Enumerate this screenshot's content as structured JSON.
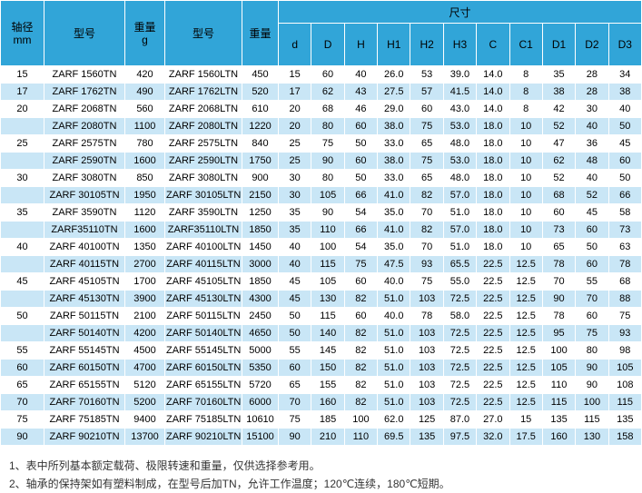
{
  "colors": {
    "header_bg": "#31a5d8",
    "stripe_bg": "#c9e6f6",
    "body_bg": "#ffffff",
    "text": "#000000"
  },
  "table": {
    "header": {
      "axis_line1": "轴径",
      "axis_line2": "mm",
      "model_tn": "型号",
      "weight_line1": "重量",
      "weight_line2": "g",
      "model_ltn": "型号",
      "weight2": "重量",
      "dims_group": "尺寸",
      "dims": [
        "d",
        "D",
        "H",
        "H1",
        "H2",
        "H3",
        "C",
        "C1",
        "D1",
        "D2",
        "D3"
      ]
    },
    "rows": [
      [
        "15",
        "ZARF 1560TN",
        "420",
        "ZARF 1560LTN",
        "450",
        "15",
        "60",
        "40",
        "26.0",
        "53",
        "39.0",
        "14.0",
        "8",
        "35",
        "28",
        "34"
      ],
      [
        "17",
        "ZARF 1762TN",
        "490",
        "ZARF 1762LTN",
        "520",
        "17",
        "62",
        "43",
        "27.5",
        "57",
        "41.5",
        "14.0",
        "8",
        "38",
        "28",
        "38"
      ],
      [
        "20",
        "ZARF 2068TN",
        "560",
        "ZARF 2068LTN",
        "610",
        "20",
        "68",
        "46",
        "29.0",
        "60",
        "43.0",
        "14.0",
        "8",
        "42",
        "30",
        "40"
      ],
      [
        "",
        "ZARF 2080TN",
        "1100",
        "ZARF 2080LTN",
        "1220",
        "20",
        "80",
        "60",
        "38.0",
        "75",
        "53.0",
        "18.0",
        "10",
        "52",
        "40",
        "50"
      ],
      [
        "25",
        "ZARF 2575TN",
        "780",
        "ZARF 2575LTN",
        "840",
        "25",
        "75",
        "50",
        "33.0",
        "65",
        "48.0",
        "18.0",
        "10",
        "47",
        "36",
        "45"
      ],
      [
        "",
        "ZARF 2590TN",
        "1600",
        "ZARF 2590LTN",
        "1750",
        "25",
        "90",
        "60",
        "38.0",
        "75",
        "53.0",
        "18.0",
        "10",
        "62",
        "48",
        "60"
      ],
      [
        "30",
        "ZARF 3080TN",
        "850",
        "ZARF 3080LTN",
        "900",
        "30",
        "80",
        "50",
        "33.0",
        "65",
        "48.0",
        "18.0",
        "10",
        "52",
        "40",
        "50"
      ],
      [
        "",
        "ZARF 30105TN",
        "1950",
        "ZARF 30105LTN",
        "2150",
        "30",
        "105",
        "66",
        "41.0",
        "82",
        "57.0",
        "18.0",
        "10",
        "68",
        "52",
        "66"
      ],
      [
        "35",
        "ZARF 3590TN",
        "1120",
        "ZARF 3590LTN",
        "1250",
        "35",
        "90",
        "54",
        "35.0",
        "70",
        "51.0",
        "18.0",
        "10",
        "60",
        "45",
        "58"
      ],
      [
        "",
        "ZARF35110TN",
        "1600",
        "ZARF35110LTN",
        "1850",
        "35",
        "110",
        "66",
        "41.0",
        "82",
        "57.0",
        "18.0",
        "10",
        "73",
        "60",
        "73"
      ],
      [
        "40",
        "ZARF 40100TN",
        "1350",
        "ZARF 40100LTN",
        "1450",
        "40",
        "100",
        "54",
        "35.0",
        "70",
        "51.0",
        "18.0",
        "10",
        "65",
        "50",
        "63"
      ],
      [
        "",
        "ZARF 40115TN",
        "2700",
        "ZARF 40115LTN",
        "3000",
        "40",
        "115",
        "75",
        "47.5",
        "93",
        "65.5",
        "22.5",
        "12.5",
        "78",
        "60",
        "78"
      ],
      [
        "45",
        "ZARF 45105TN",
        "1700",
        "ZARF 45105LTN",
        "1850",
        "45",
        "105",
        "60",
        "40.0",
        "75",
        "55.0",
        "22.5",
        "12.5",
        "70",
        "55",
        "68"
      ],
      [
        "",
        "ZARF 45130TN",
        "3900",
        "ZARF 45130LTN",
        "4300",
        "45",
        "130",
        "82",
        "51.0",
        "103",
        "72.5",
        "22.5",
        "12.5",
        "90",
        "70",
        "88"
      ],
      [
        "50",
        "ZARF 50115TN",
        "2100",
        "ZARF 50115LTN",
        "2450",
        "50",
        "115",
        "60",
        "40.0",
        "78",
        "58.0",
        "22.5",
        "12.5",
        "78",
        "60",
        "75"
      ],
      [
        "",
        "ZARF 50140TN",
        "4200",
        "ZARF 50140LTN",
        "4650",
        "50",
        "140",
        "82",
        "51.0",
        "103",
        "72.5",
        "22.5",
        "12.5",
        "95",
        "75",
        "93"
      ],
      [
        "55",
        "ZARF 55145TN",
        "4500",
        "ZARF 55145LTN",
        "5000",
        "55",
        "145",
        "82",
        "51.0",
        "103",
        "72.5",
        "22.5",
        "12.5",
        "100",
        "80",
        "98"
      ],
      [
        "60",
        "ZARF 60150TN",
        "4700",
        "ZARF 60150LTN",
        "5350",
        "60",
        "150",
        "82",
        "51.0",
        "103",
        "72.5",
        "22.5",
        "12.5",
        "105",
        "90",
        "105"
      ],
      [
        "65",
        "ZARF 65155TN",
        "5120",
        "ZARF 65155LTN",
        "5720",
        "65",
        "155",
        "82",
        "51.0",
        "103",
        "72.5",
        "22.5",
        "12.5",
        "110",
        "90",
        "108"
      ],
      [
        "70",
        "ZARF 70160TN",
        "5200",
        "ZARF 70160LTN",
        "6000",
        "70",
        "160",
        "82",
        "51.0",
        "103",
        "72.5",
        "22.5",
        "12.5",
        "115",
        "100",
        "115"
      ],
      [
        "75",
        "ZARF 75185TN",
        "9400",
        "ZARF 75185LTN",
        "10610",
        "75",
        "185",
        "100",
        "62.0",
        "125",
        "87.0",
        "27.0",
        "15",
        "135",
        "115",
        "135"
      ],
      [
        "90",
        "ZARF 90210TN",
        "13700",
        "ZARF 90210LTN",
        "15100",
        "90",
        "210",
        "110",
        "69.5",
        "135",
        "97.5",
        "32.0",
        "17.5",
        "160",
        "130",
        "158"
      ]
    ]
  },
  "notes": [
    "1、表中所列基本额定载荷、极限转速和重量，仅供选择参考用。",
    "2、轴承的保持架如有塑料制成，在型号后加TN，允许工作温度；120℃连续，180℃短期。"
  ]
}
